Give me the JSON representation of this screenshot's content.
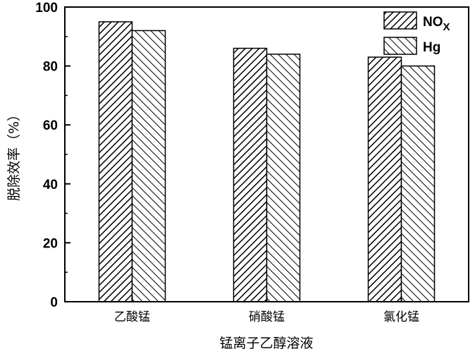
{
  "chart_data": {
    "type": "bar",
    "categories": [
      "乙酸锰",
      "硝酸锰",
      "氯化锰"
    ],
    "series": [
      {
        "name": "NO",
        "name_sub": "X",
        "values": [
          95,
          86,
          83
        ],
        "hatch": "dense"
      },
      {
        "name": "Hg",
        "values": [
          92,
          84,
          80
        ],
        "hatch": "sparse"
      }
    ],
    "xlabel": "锰离子乙醇溶液",
    "ylabel": "脱除效率（%）",
    "ylim": [
      0,
      100
    ],
    "yticks": [
      0,
      20,
      40,
      60,
      80,
      100
    ],
    "grid": false,
    "legend_position": "top-right",
    "colors": {
      "bar_fill": "#ffffff",
      "hatch": "#000000",
      "axis": "#000000"
    }
  }
}
